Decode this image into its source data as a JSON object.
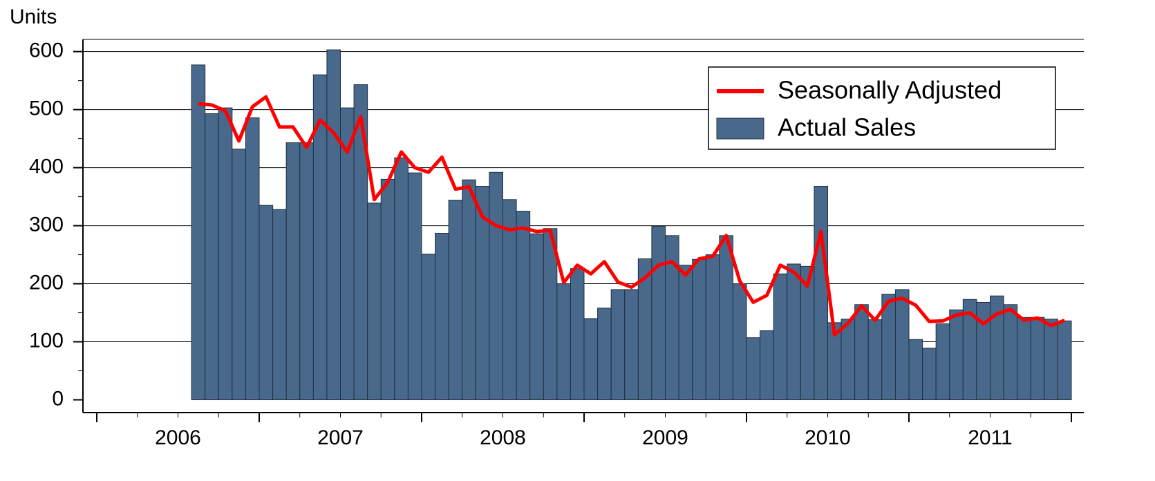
{
  "chart_data": {
    "type": "bar",
    "y_label": "Units",
    "categories": [
      null,
      null,
      null,
      null,
      null,
      null,
      null,
      null,
      null,
      null,
      null,
      null,
      null,
      null,
      null,
      null,
      null,
      null,
      null,
      null,
      null,
      null,
      null,
      null,
      null,
      null,
      null,
      null,
      null,
      null,
      null,
      null,
      null,
      null,
      null,
      null,
      null,
      null,
      null,
      null,
      null,
      null,
      null,
      null,
      null,
      null,
      null,
      null,
      null,
      null,
      null,
      null,
      null,
      null,
      null,
      null,
      null,
      null,
      null,
      null,
      null,
      null,
      null,
      null,
      null
    ],
    "year_labels": [
      "2006",
      "2007",
      "2008",
      "2009",
      "2010",
      "2011"
    ],
    "ylim": [
      -22,
      621
    ],
    "yticks": [
      0,
      100,
      200,
      300,
      400,
      500,
      600
    ],
    "grid": true,
    "legend": "upper right",
    "series": [
      {
        "name": "Seasonally Adjusted",
        "type": "line",
        "color": "#ff0000",
        "values": [
          510,
          508,
          498,
          446,
          505,
          522,
          470,
          470,
          435,
          482,
          460,
          427,
          488,
          345,
          375,
          427,
          400,
          392,
          418,
          363,
          367,
          315,
          300,
          293,
          296,
          290,
          292,
          202,
          232,
          217,
          238,
          203,
          194,
          210,
          232,
          238,
          215,
          243,
          247,
          283,
          205,
          168,
          180,
          232,
          220,
          196,
          290,
          112,
          132,
          162,
          137,
          170,
          175,
          163,
          135,
          136,
          146,
          150,
          131,
          148,
          156,
          137,
          141,
          128,
          137
        ]
      },
      {
        "name": "Actual Sales",
        "type": "bar",
        "color": "#48698c",
        "values": [
          577,
          493,
          503,
          432,
          486,
          335,
          328,
          443,
          443,
          560,
          603,
          503,
          543,
          339,
          380,
          417,
          391,
          251,
          287,
          344,
          379,
          368,
          392,
          345,
          325,
          286,
          295,
          200,
          226,
          140,
          158,
          190,
          190,
          243,
          299,
          283,
          232,
          242,
          250,
          283,
          200,
          107,
          119,
          217,
          234,
          230,
          368,
          133,
          139,
          164,
          138,
          182,
          190,
          104,
          89,
          131,
          155,
          173,
          168,
          179,
          164,
          142,
          142,
          139,
          136
        ]
      }
    ]
  }
}
